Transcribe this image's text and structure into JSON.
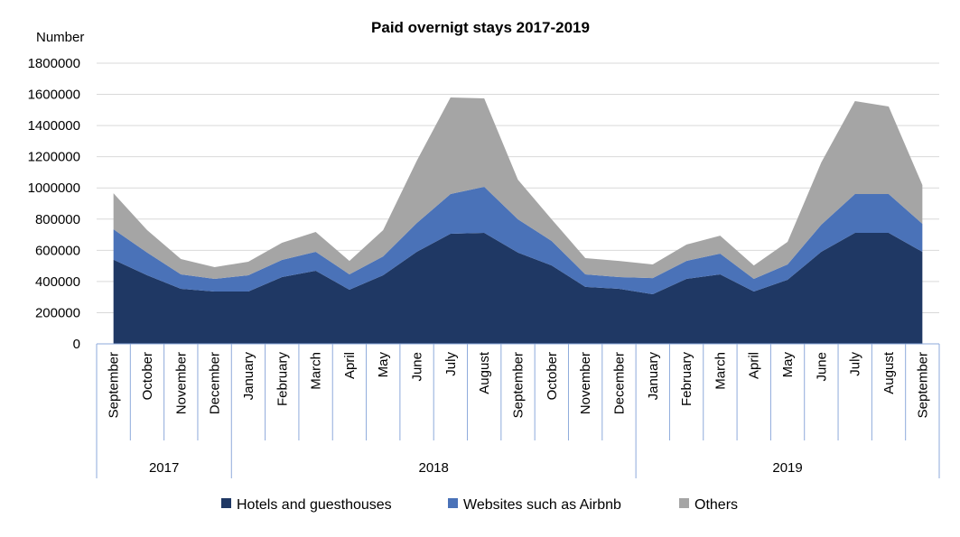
{
  "chart_data": {
    "type": "area",
    "stacked": true,
    "title": "Paid overnigt stays 2017-2019",
    "ylabel": "Number",
    "xlabel": "",
    "ylim": [
      0,
      1800000
    ],
    "yticks": [
      0,
      200000,
      400000,
      600000,
      800000,
      1000000,
      1200000,
      1400000,
      1600000,
      1800000
    ],
    "grid": true,
    "legend_position": "bottom",
    "categories": [
      "September",
      "October",
      "November",
      "December",
      "January",
      "February",
      "March",
      "April",
      "May",
      "June",
      "July",
      "August",
      "September",
      "October",
      "November",
      "December",
      "January",
      "February",
      "March",
      "April",
      "May",
      "June",
      "July",
      "August",
      "September"
    ],
    "groups": [
      {
        "label": "2017",
        "count": 4
      },
      {
        "label": "2018",
        "count": 12
      },
      {
        "label": "2019",
        "count": 9
      }
    ],
    "series": [
      {
        "name": "Hotels and guesthouses",
        "color": "#1f3864",
        "values": [
          540000,
          440000,
          353000,
          336000,
          336000,
          428000,
          469000,
          347000,
          440000,
          590000,
          706000,
          712000,
          585000,
          503000,
          365000,
          353000,
          318000,
          417000,
          446000,
          336000,
          411000,
          590000,
          712000,
          712000,
          590000
        ]
      },
      {
        "name": "Websites such as Airbnb",
        "color": "#4a72b8",
        "values": [
          195000,
          145000,
          93000,
          81000,
          104000,
          110000,
          121000,
          99000,
          121000,
          185000,
          255000,
          295000,
          214000,
          157000,
          81000,
          75000,
          104000,
          115000,
          133000,
          81000,
          98000,
          174000,
          249000,
          249000,
          180000
        ]
      },
      {
        "name": "Others",
        "color": "#a5a5a5",
        "values": [
          231000,
          144000,
          98000,
          75000,
          87000,
          110000,
          128000,
          86000,
          168000,
          400000,
          619000,
          567000,
          254000,
          139000,
          104000,
          104000,
          87000,
          105000,
          115000,
          86000,
          145000,
          399000,
          596000,
          561000,
          249000
        ]
      }
    ]
  }
}
